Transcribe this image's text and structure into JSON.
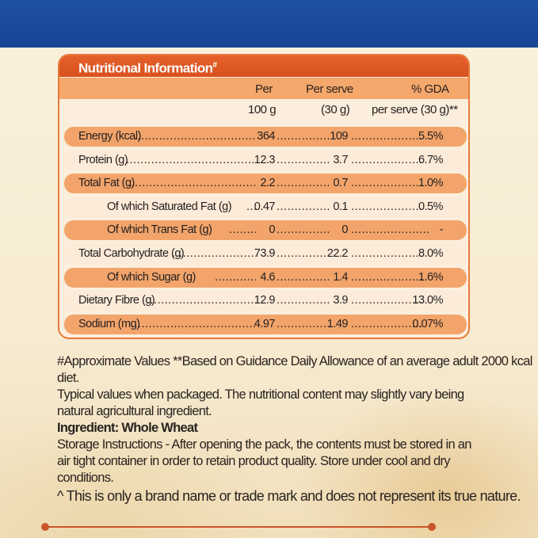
{
  "panel": {
    "title": "Nutritional Information",
    "title_mark": "#",
    "headers": {
      "per_top": "Per",
      "per_bottom": "100 g",
      "serve_top": "Per serve",
      "serve_bottom": "(30 g)",
      "gda_top": "% GDA",
      "gda_bottom": "per serve (30 g)**"
    },
    "rows": [
      {
        "label": "Energy (kcal)",
        "per100": "364",
        "serve": "109",
        "gda": "5.5%"
      },
      {
        "label": "Protein (g)",
        "per100": "12.3",
        "serve": "3.7",
        "gda": "6.7%"
      },
      {
        "label": "Total Fat (g)",
        "per100": "2.2",
        "serve": "0.7",
        "gda": "1.0%"
      },
      {
        "label": "Of which Saturated Fat (g)",
        "per100": "0.47",
        "serve": "0.1",
        "gda": "0.5%"
      },
      {
        "label": "Of which Trans Fat (g)",
        "per100": "0",
        "serve": "0",
        "gda": "-"
      },
      {
        "label": "Total Carbohydrate (g)",
        "per100": "73.9",
        "serve": "22.2",
        "gda": "8.0%"
      },
      {
        "label": "Of which Sugar (g)",
        "per100": "4.6",
        "serve": "1.4",
        "gda": "1.6%"
      },
      {
        "label": "Dietary Fibre (g)",
        "per100": "12.9",
        "serve": "3.9",
        "gda": "13.0%"
      },
      {
        "label": "Sodium (mg)",
        "per100": "4.97",
        "serve": "1.49",
        "gda": "0.07%"
      }
    ]
  },
  "notes": {
    "approx": "#Approximate Values **Based on Guidance Daily Allowance of an average adult 2000 kcal diet.",
    "typical": "Typical values when packaged. The nutritional content may slightly vary being natural agricultural ingredient.",
    "ingredient": "Ingredient: Whole Wheat",
    "storage": "Storage Instructions - After opening the pack, the contents must be stored in an air tight container in order to retain product quality. Store under cool and dry conditions.",
    "brand": "^ This is only a brand name or trade mark and does not represent its true nature."
  },
  "colors": {
    "top_band": "#1f4fa3",
    "header": "#e6622b",
    "row_dark": "#f2a46a",
    "row_light": "#fcebd8"
  }
}
